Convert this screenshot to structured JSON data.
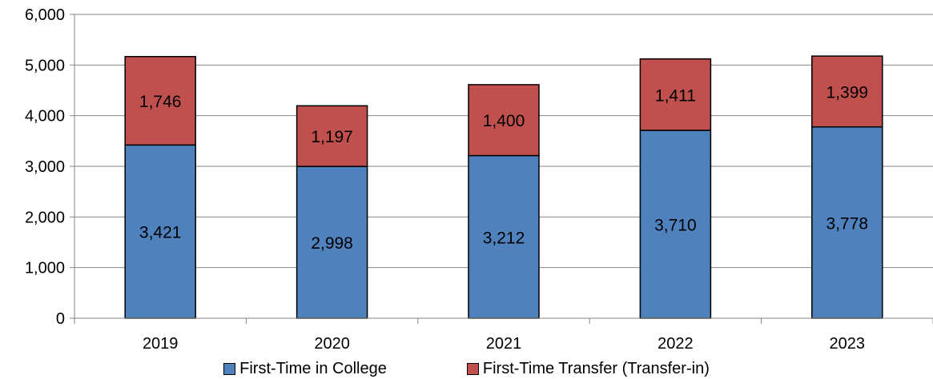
{
  "chart_data": {
    "type": "bar",
    "stacked": true,
    "categories": [
      "2019",
      "2020",
      "2021",
      "2022",
      "2023"
    ],
    "series": [
      {
        "name": "First-Time in College",
        "values": [
          3421,
          2998,
          3212,
          3710,
          3778
        ],
        "color": "#4F81BD"
      },
      {
        "name": "First-Time Transfer (Transfer-in)",
        "values": [
          1746,
          1197,
          1400,
          1411,
          1399
        ],
        "color": "#C0504D"
      }
    ],
    "data_labels": [
      [
        "3,421",
        "2,998",
        "3,212",
        "3,710",
        "3,778"
      ],
      [
        "1,746",
        "1,197",
        "1,400",
        "1,411",
        "1,399"
      ]
    ],
    "y_tick_labels": [
      "0",
      "1,000",
      "2,000",
      "3,000",
      "4,000",
      "5,000",
      "6,000"
    ],
    "y_ticks": [
      0,
      1000,
      2000,
      3000,
      4000,
      5000,
      6000
    ],
    "ylim": [
      0,
      6000
    ],
    "grid": true,
    "legend_position": "bottom",
    "title": "",
    "xlabel": "",
    "ylabel": ""
  }
}
